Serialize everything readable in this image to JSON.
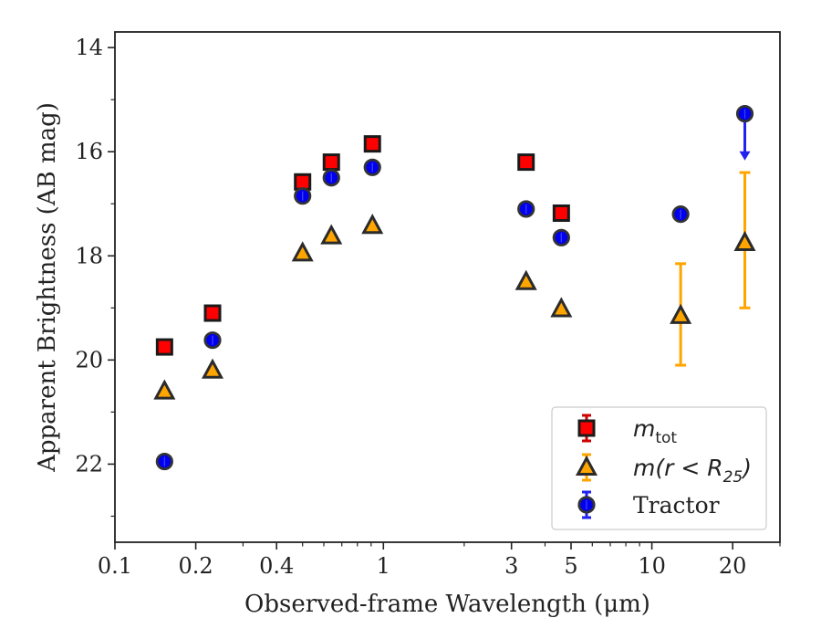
{
  "chart_data": {
    "type": "scatter",
    "xlabel": "Observed-frame Wavelength (μm)",
    "ylabel": "Apparent Brightness (AB mag)",
    "xscale": "log",
    "xlim": [
      0.1,
      30
    ],
    "ylim": [
      23.5,
      13.7
    ],
    "y_inverted": true,
    "x_ticks": [
      {
        "value": 0.1,
        "label": "0.1"
      },
      {
        "value": 0.2,
        "label": "0.2"
      },
      {
        "value": 0.4,
        "label": "0.4"
      },
      {
        "value": 1,
        "label": "1"
      },
      {
        "value": 3,
        "label": "3"
      },
      {
        "value": 5,
        "label": "5"
      },
      {
        "value": 10,
        "label": "10"
      },
      {
        "value": 20,
        "label": "20"
      }
    ],
    "x_minor_ticks": [
      0.3,
      0.5,
      0.6,
      0.7,
      0.8,
      0.9,
      2,
      4,
      6,
      7,
      8,
      9,
      30
    ],
    "y_ticks": [
      {
        "value": 14,
        "label": "14"
      },
      {
        "value": 16,
        "label": "16"
      },
      {
        "value": 18,
        "label": "18"
      },
      {
        "value": 20,
        "label": "20"
      },
      {
        "value": 22,
        "label": "22"
      }
    ],
    "y_minor_ticks": [
      15,
      17,
      19,
      21,
      23
    ],
    "legend_position": "lower-right",
    "series": [
      {
        "key": "mtot",
        "legend_base": "m",
        "legend_sub": "tot",
        "legend_rest": "",
        "marker": "square",
        "color": "#ff0000",
        "edge_color": "#1a1a1a",
        "points": [
          {
            "x": 0.153,
            "y": 19.75
          },
          {
            "x": 0.231,
            "y": 19.1
          },
          {
            "x": 0.5,
            "y": 16.58
          },
          {
            "x": 0.64,
            "y": 16.2
          },
          {
            "x": 0.91,
            "y": 15.85
          },
          {
            "x": 3.4,
            "y": 16.2
          },
          {
            "x": 4.6,
            "y": 17.18
          }
        ]
      },
      {
        "key": "mr25",
        "legend_base": "m(r < R",
        "legend_sub": "25",
        "legend_rest": ")",
        "marker": "triangle",
        "color": "#ffa500",
        "edge_color": "#2b2b2b",
        "points": [
          {
            "x": 0.153,
            "y": 20.6
          },
          {
            "x": 0.231,
            "y": 20.2
          },
          {
            "x": 0.5,
            "y": 17.95
          },
          {
            "x": 0.64,
            "y": 17.62
          },
          {
            "x": 0.91,
            "y": 17.42
          },
          {
            "x": 3.4,
            "y": 18.5
          },
          {
            "x": 4.6,
            "y": 19.02
          },
          {
            "x": 12.8,
            "y": 19.15,
            "yerr": [
              1.0,
              0.95
            ]
          },
          {
            "x": 22.2,
            "y": 17.75,
            "yerr": [
              1.35,
              1.25
            ]
          }
        ]
      },
      {
        "key": "tractor",
        "legend_base": "Tractor",
        "legend_sub": "",
        "legend_rest": "",
        "marker": "circle",
        "color": "#0000ee",
        "edge_color": "#333333",
        "points": [
          {
            "x": 0.153,
            "y": 21.95
          },
          {
            "x": 0.231,
            "y": 19.62
          },
          {
            "x": 0.5,
            "y": 16.85
          },
          {
            "x": 0.64,
            "y": 16.5
          },
          {
            "x": 0.91,
            "y": 16.3
          },
          {
            "x": 3.4,
            "y": 17.1
          },
          {
            "x": 4.6,
            "y": 17.65
          },
          {
            "x": 12.8,
            "y": 17.2
          },
          {
            "x": 22.2,
            "y": 15.27,
            "upper_limit": true,
            "arrow_to": 16.15
          }
        ]
      }
    ]
  }
}
